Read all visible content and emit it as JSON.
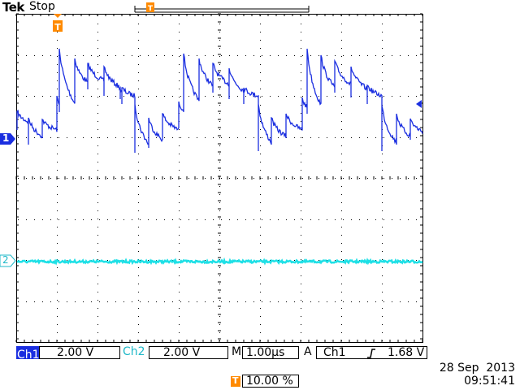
{
  "header": {
    "brand": "Tek",
    "status": "Stop",
    "trigger_marker": "T"
  },
  "markers": {
    "ch1": "1",
    "ch2": "2"
  },
  "readouts": {
    "ch1_label": "Ch1",
    "ch1_scale": "2.00 V",
    "ch2_label": "Ch2",
    "ch2_scale": "2.00 V",
    "timebase_label": "M",
    "timebase": "1.00µs",
    "trigger_mode": "A",
    "trigger_source": "Ch1",
    "trigger_level": "1.68 V",
    "trigger_position": "10.00 %"
  },
  "datetime": {
    "date": "28 Sep  2013",
    "time": "09:51:41"
  },
  "colors": {
    "ch1": "#1a2ee0",
    "ch2": "#1fe0e6",
    "trigger": "#ff8a00",
    "grid": "#000000"
  },
  "icons": {
    "slope": "rising-edge-icon",
    "trigger": "trigger-t-icon"
  }
}
